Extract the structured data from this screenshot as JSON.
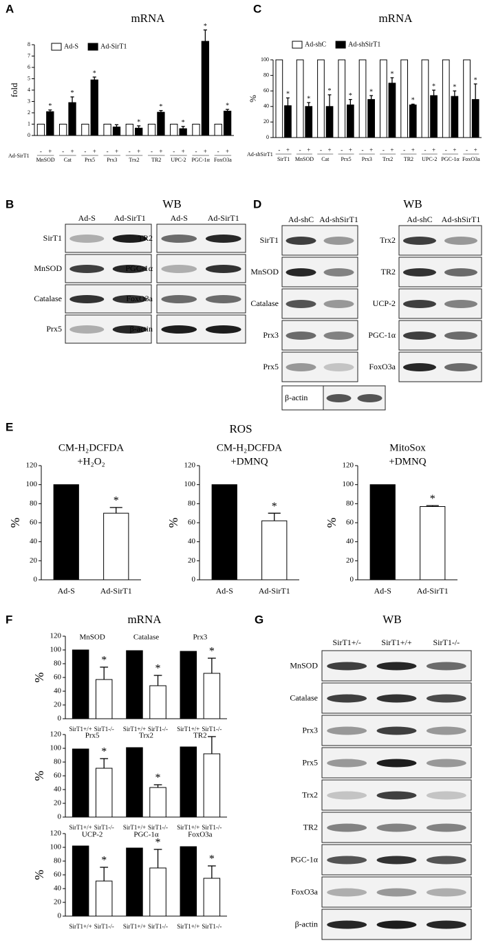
{
  "figure": {
    "panel_letters": [
      "A",
      "B",
      "C",
      "D",
      "E",
      "F",
      "G"
    ],
    "headings": [
      "mRNA",
      "WB",
      "mRNA",
      "WB",
      "ROS",
      "mRNA",
      "WB"
    ]
  },
  "chart_data": [
    {
      "type": "bar",
      "ylabel": "fold",
      "categories": [
        "MnSOD",
        "Cat",
        "Prx5",
        "Prx3",
        "Trx2",
        "TR2",
        "UPC-2",
        "PGC-1α",
        "FoxO3a"
      ],
      "series": [
        {
          "name": "Ad-S",
          "color": "#ffffff",
          "values": [
            1,
            1,
            1,
            1,
            1,
            1,
            1,
            1,
            1
          ]
        },
        {
          "name": "Ad-SirT1",
          "color": "#000000",
          "values": [
            2.1,
            2.9,
            4.9,
            0.75,
            0.65,
            2.05,
            0.6,
            8.3,
            2.15
          ],
          "errors": [
            0.15,
            0.5,
            0.25,
            0.2,
            0.2,
            0.15,
            0.2,
            1.0,
            0.15
          ],
          "significant": [
            true,
            true,
            true,
            false,
            true,
            true,
            true,
            true,
            true
          ]
        }
      ],
      "ylim": [
        0,
        8
      ],
      "yticks": [
        0,
        1,
        2,
        3,
        4,
        5,
        6,
        7,
        8
      ],
      "significance_marker": "*",
      "legend": "top-left",
      "treatment_row": {
        "label": "Ad-SirT1",
        "signs": [
          "-",
          "+"
        ]
      }
    },
    {
      "type": "bar",
      "ylabel": "%",
      "categories": [
        "SirT1",
        "MnSOD",
        "Cat",
        "Prx5",
        "Prx3",
        "Trx2",
        "TR2",
        "UPC-2",
        "PGC-1α",
        "FoxO3a"
      ],
      "series": [
        {
          "name": "Ad-shC",
          "color": "#ffffff",
          "values": [
            100,
            100,
            100,
            100,
            100,
            100,
            100,
            100,
            100,
            100
          ]
        },
        {
          "name": "Ad-shSirT1",
          "color": "#000000",
          "values": [
            41,
            40,
            40,
            42,
            49,
            70,
            42,
            54,
            53,
            49
          ],
          "errors": [
            10,
            5,
            15,
            7,
            5,
            7,
            1,
            7,
            7,
            20
          ],
          "significant": [
            true,
            true,
            true,
            true,
            true,
            true,
            true,
            true,
            true,
            true
          ]
        }
      ],
      "ylim": [
        0,
        100
      ],
      "yticks": [
        0,
        20,
        40,
        60,
        80,
        100
      ],
      "significance_marker": "*",
      "legend": "top-left",
      "treatment_row": {
        "label": "Ad-shSirT1",
        "signs": [
          "-",
          "+"
        ]
      }
    },
    {
      "type": "bar",
      "title": [
        "CM-H₂DCFDA",
        "+H₂O₂"
      ],
      "ylabel": "%",
      "categories": [
        "Ad-S",
        "Ad-SirT1"
      ],
      "values": [
        100,
        70
      ],
      "errors": [
        0,
        6
      ],
      "colors": [
        "#000000",
        "#ffffff"
      ],
      "significant": [
        false,
        true
      ],
      "significance_marker": "*",
      "ylim": [
        0,
        120
      ],
      "yticks": [
        0,
        20,
        40,
        60,
        80,
        100,
        120
      ]
    },
    {
      "type": "bar",
      "title": [
        "CM-H₂DCFDA",
        "+DMNQ"
      ],
      "ylabel": "%",
      "categories": [
        "Ad-S",
        "Ad-SirT1"
      ],
      "values": [
        100,
        62
      ],
      "errors": [
        0,
        8
      ],
      "colors": [
        "#000000",
        "#ffffff"
      ],
      "significant": [
        false,
        true
      ],
      "significance_marker": "*",
      "ylim": [
        0,
        120
      ],
      "yticks": [
        0,
        20,
        40,
        60,
        80,
        100,
        120
      ]
    },
    {
      "type": "bar",
      "title": [
        "MitoSox",
        "+DMNQ"
      ],
      "ylabel": "%",
      "categories": [
        "Ad-S",
        "Ad-SirT1"
      ],
      "values": [
        100,
        77
      ],
      "errors": [
        0,
        1
      ],
      "colors": [
        "#000000",
        "#ffffff"
      ],
      "significant": [
        false,
        true
      ],
      "significance_marker": "*",
      "ylim": [
        0,
        120
      ],
      "yticks": [
        0,
        20,
        40,
        60,
        80,
        100,
        120
      ]
    },
    {
      "type": "bar",
      "ylabel": "%",
      "categories": [
        "MnSOD",
        "Catalase",
        "Prx3"
      ],
      "category_position": "top",
      "series_labels_below": true,
      "series": [
        {
          "name": "SirT1+/+",
          "color": "#000000",
          "values": [
            100,
            99,
            98
          ]
        },
        {
          "name": "SirT1-/-",
          "color": "#ffffff",
          "values": [
            57,
            48,
            66
          ],
          "errors": [
            18,
            15,
            22
          ],
          "significant": [
            true,
            true,
            true
          ]
        }
      ],
      "ylim": [
        0,
        120
      ],
      "yticks": [
        0,
        20,
        40,
        60,
        80,
        100,
        120
      ],
      "significance_marker": "*"
    },
    {
      "type": "bar",
      "ylabel": "%",
      "categories": [
        "Prx5",
        "Trx2",
        "TR2"
      ],
      "category_position": "top",
      "series_labels_below": true,
      "series": [
        {
          "name": "SirT1+/+",
          "color": "#000000",
          "values": [
            99,
            101,
            102
          ]
        },
        {
          "name": "SirT1-/-",
          "color": "#ffffff",
          "values": [
            71,
            43,
            92
          ],
          "errors": [
            14,
            4,
            25
          ],
          "significant": [
            true,
            true,
            false
          ]
        }
      ],
      "ylim": [
        0,
        120
      ],
      "yticks": [
        0,
        20,
        40,
        60,
        80,
        100,
        120
      ],
      "significance_marker": "*"
    },
    {
      "type": "bar",
      "ylabel": "%",
      "categories": [
        "UCP-2",
        "PGC-1α",
        "FoxO3a"
      ],
      "category_position": "top",
      "series_labels_below": true,
      "series": [
        {
          "name": "SirT1+/+",
          "color": "#000000",
          "values": [
            102,
            99,
            101
          ]
        },
        {
          "name": "SirT1-/-",
          "color": "#ffffff",
          "values": [
            51,
            70,
            55
          ],
          "errors": [
            20,
            27,
            18
          ],
          "significant": [
            true,
            true,
            true
          ]
        }
      ],
      "ylim": [
        0,
        120
      ],
      "yticks": [
        0,
        20,
        40,
        60,
        80,
        100,
        120
      ],
      "significance_marker": "*"
    }
  ],
  "blots": [
    {
      "columns": [
        "Ad-S",
        "Ad-SirT1"
      ],
      "rows": [
        "SirT1",
        "MnSOD",
        "Catalase",
        "Prx5"
      ]
    },
    {
      "columns": [
        "Ad-S",
        "Ad-SirT1"
      ],
      "rows": [
        "TR2",
        "PGC-1α",
        "FoxO3a",
        "β-actin"
      ]
    },
    {
      "columns": [
        "Ad-shC",
        "Ad-shSirT1"
      ],
      "rows": [
        "SirT1",
        "MnSOD",
        "Catalase",
        "Prx3",
        "Prx5"
      ]
    },
    {
      "columns": [
        "Ad-shC",
        "Ad-shSirT1"
      ],
      "rows": [
        "Trx2",
        "TR2",
        "UCP-2",
        "PGC-1α",
        "FoxO3a"
      ]
    },
    {
      "rows": [
        "β-actin"
      ]
    },
    {
      "columns": [
        "SirT1+/-",
        "SirT1+/+",
        "SirT1-/-"
      ],
      "rows": [
        "MnSOD",
        "Catalase",
        "Prx3",
        "Prx5",
        "Trx2",
        "TR2",
        "PGC-1α",
        "FoxO3a",
        "β-actin"
      ]
    }
  ]
}
